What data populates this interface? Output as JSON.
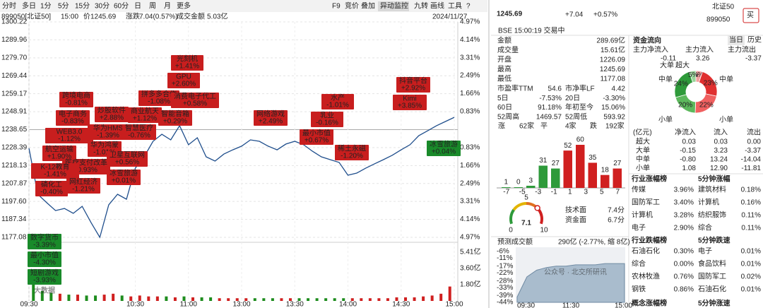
{
  "toolbar": {
    "periods": [
      "分时",
      "多日",
      "1分",
      "5分",
      "15分",
      "30分",
      "60分",
      "日",
      "周",
      "月",
      "更多"
    ],
    "tools": [
      "F9",
      "竞价",
      "叠加",
      "异动监控",
      "九转",
      "画线",
      "工具",
      "?"
    ]
  },
  "info": {
    "code": "899050[北证50]",
    "time": "15:00",
    "price_label": "价",
    "price": "1245.69",
    "change_label": "涨跌",
    "change": "7.04(0.57%)",
    "amount_label": "成交金额",
    "amount": "5.03亿",
    "date": "2024/11/27"
  },
  "chart_data": {
    "type": "line",
    "color": "#1f4e8c",
    "grid": true,
    "values": [
      1228.0,
      1201.7,
      1196.9,
      1192.4,
      1193.6,
      1190.8,
      1194.8,
      1185.6,
      1177.08,
      1195.7,
      1201.7,
      1198.9,
      1216.6,
      1223.1,
      1232.0,
      1236.0,
      1232.8,
      1240.9,
      1230.0,
      1234.0,
      1223.1,
      1220.7,
      1224.7,
      1227.1,
      1229.2,
      1232.8,
      1232.0,
      1229.2,
      1227.1,
      1230.4,
      1232.0,
      1230.0,
      1226.3,
      1223.1,
      1221.5,
      1219.9,
      1212.6,
      1213.8,
      1216.6,
      1219.1,
      1221.5,
      1224.0,
      1227.1,
      1230.0,
      1235.2,
      1238.0,
      1240.9,
      1243.3,
      1245.69
    ],
    "ylim": [
      1177.08,
      1300.22
    ],
    "yticks": [
      1300.22,
      1289.96,
      {
        "value": 1279.7,
        "label": "1279.70"
      },
      1269.44,
      1259.17,
      1248.91,
      1238.65,
      1228.39,
      1218.13,
      1207.87,
      {
        "value": 1197.6,
        "label": "1197.60"
      },
      1187.34,
      1177.08
    ],
    "y2lim": [
      -4.97,
      4.97
    ],
    "y2ticks": [
      {
        "value": 4.97,
        "label": "4.97%"
      },
      {
        "value": 4.14,
        "label": "4.14%"
      },
      {
        "value": 3.31,
        "label": "3.31%"
      },
      {
        "value": 2.49,
        "label": "2.49%"
      },
      {
        "value": 1.66,
        "label": "1.66%"
      },
      {
        "value": 0.83,
        "label": "0.83%"
      },
      {
        "value": -0.83,
        "label": "0.83%"
      },
      {
        "value": -1.66,
        "label": "1.66%"
      },
      {
        "value": -2.49,
        "label": "2.49%"
      },
      {
        "value": -3.31,
        "label": "3.31%"
      },
      {
        "value": -4.14,
        "label": "4.14%"
      },
      {
        "value": -4.97,
        "label": "4.97%"
      }
    ],
    "xticks": [
      "09:30",
      "10:30",
      "11:00",
      "13:00",
      "13:30",
      "14:00",
      "14:30",
      "15:00"
    ],
    "volume": {
      "values": [
        2.6,
        1.1,
        0.9,
        0.8,
        0.7,
        0.7,
        0.6,
        0.6,
        0.7,
        0.8,
        0.6,
        0.5,
        0.6,
        0.5,
        0.5,
        0.5,
        0.4,
        0.5,
        0.4,
        0.4,
        0.4,
        0.3,
        0.3,
        0.3,
        0.3,
        0.3,
        0.3,
        0.3,
        0.3,
        0.3,
        0.3,
        0.3,
        0.3,
        0.3,
        0.3,
        0.3,
        0.3,
        0.3,
        0.3,
        0.3,
        0.3,
        0.4,
        0.4,
        0.4,
        0.5,
        0.6,
        0.8,
        1.6
      ],
      "ylim": [
        0,
        5.41
      ],
      "yticks": [
        {
          "value": 5.41,
          "label": "5.41亿"
        },
        {
          "value": 3.6,
          "label": "3.60亿"
        },
        {
          "value": 1.8,
          "label": "1.80亿"
        }
      ]
    }
  },
  "annotations": [
    {
      "name": "光刻机",
      "change": "+1.41%",
      "tone": "up"
    },
    {
      "name": "GPU",
      "change": "+2.60%",
      "tone": "up"
    },
    {
      "name": "拼多多合作",
      "change": "-1.08%",
      "tone": "up"
    },
    {
      "name": "消费电子代工",
      "change": "+0.58%",
      "tone": "up"
    },
    {
      "name": "跨境电商",
      "change": "-0.81%",
      "tone": "up"
    },
    {
      "name": "电子商务",
      "change": "-0.83%",
      "tone": "up"
    },
    {
      "name": "炒股软件",
      "change": "+2.88%",
      "tone": "up"
    },
    {
      "name": "商业航天",
      "change": "+1.12%",
      "tone": "up"
    },
    {
      "name": "智能音箱",
      "change": "+0.29%",
      "tone": "up"
    },
    {
      "name": "华为HMS",
      "change": "-1.39%",
      "tone": "up"
    },
    {
      "name": "智慧医疗",
      "change": "-0.76%",
      "tone": "up"
    },
    {
      "name": "WEB3.0",
      "change": "-1.12%",
      "tone": "up"
    },
    {
      "name": "航空运输",
      "change": "+1.90%",
      "tone": "up"
    },
    {
      "name": "华为鸿蒙",
      "change": "-1.01%",
      "tone": "up"
    },
    {
      "name": "卫星互联网",
      "change": "+0.56%",
      "tone": "up"
    },
    {
      "name": "医疗支付改革",
      "change": "-0.93%",
      "tone": "up"
    },
    {
      "name": "K-12教育",
      "change": "-1.41%",
      "tone": "up"
    },
    {
      "name": "冰雪旅游",
      "change": "+0.01%",
      "tone": "up"
    },
    {
      "name": "网红经济",
      "change": "-1.21%",
      "tone": "up"
    },
    {
      "name": "磷化工",
      "change": "-0.40%",
      "tone": "up"
    },
    {
      "name": "网络游戏",
      "change": "+2.49%",
      "tone": "up"
    },
    {
      "name": "水产",
      "change": "-1.01%",
      "tone": "up"
    },
    {
      "name": "乳业",
      "change": "-0.16%",
      "tone": "up"
    },
    {
      "name": "最小市值",
      "change": "+0.67%",
      "tone": "up"
    },
    {
      "name": "稀土永磁",
      "change": "-1.20%",
      "tone": "up"
    },
    {
      "name": "抖音平台",
      "change": "+2.92%",
      "tone": "up"
    },
    {
      "name": "Kimi",
      "change": "+3.85%",
      "tone": "up"
    },
    {
      "name": "冰雪旅游",
      "change": "+0.04%",
      "tone": "down"
    },
    {
      "name": "数字货币",
      "change": "-3.39%",
      "tone": "down"
    },
    {
      "name": "最小市值",
      "change": "-4.30%",
      "tone": "down"
    },
    {
      "name": "短剧游戏",
      "change": "-3.93%",
      "tone": "down"
    }
  ],
  "quote": {
    "price": "1245.69",
    "change": "+7.04",
    "pct": "+0.57%",
    "name": "北证50",
    "code": "899050",
    "status": "BSE 15:00:19 交易中",
    "buy": "买"
  },
  "stats": {
    "rows": [
      [
        "金额",
        "289.69亿"
      ],
      [
        "成交量",
        "15.61亿"
      ],
      [
        "开盘",
        "1226.09"
      ],
      [
        "最高",
        "1245.69"
      ],
      [
        "最低",
        "1177.08"
      ]
    ],
    "pairs": [
      [
        "市盈率TTM",
        "54.6",
        "市净率LF",
        "4.42"
      ],
      [
        "5日",
        "-7.53%",
        "20日",
        "-3.30%"
      ],
      [
        "60日",
        "91.18%",
        "年初至今",
        "15.06%"
      ],
      [
        "52周高",
        "1469.57",
        "52周低",
        "593.92"
      ]
    ],
    "breadth": [
      "涨",
      "62家",
      "平",
      "4家",
      "跌",
      "192家"
    ]
  },
  "fund_flow": {
    "title": "资金流向",
    "tabs": [
      "当日",
      "历史"
    ],
    "summary_labels": [
      "主力净流入",
      "主力流入",
      "主力流出"
    ],
    "summary_values": [
      "-0.11",
      "3.26",
      "-3.37"
    ],
    "donut": {
      "values": [
        5,
        23,
        22,
        20,
        24,
        5
      ],
      "value_labels": [
        "5%",
        "23%",
        "22%",
        "20%",
        "24%",
        "5%"
      ],
      "colors": [
        "#f3a0a0",
        "#e03030",
        "#f06060",
        "#5cb85c",
        "#2e9a3a",
        "#9ad49a"
      ]
    },
    "donut_labels": [
      "大单",
      "超大",
      "中单",
      "中单",
      "小单",
      "小单"
    ],
    "table": {
      "header": [
        "(亿元)",
        "净流入",
        "流入",
        "流出"
      ],
      "rows": [
        [
          "超大",
          "0.03",
          "0.03",
          "0.00"
        ],
        [
          "大单",
          "-0.15",
          "3.23",
          "-3.37"
        ],
        [
          "中单",
          "-0.80",
          "13.24",
          "-14.04"
        ],
        [
          "小单",
          "1.08",
          "12.90",
          "-11.81"
        ]
      ]
    }
  },
  "distribution": {
    "type": "bar",
    "values": [
      1,
      0,
      3,
      31,
      27,
      52,
      60,
      35,
      18,
      27
    ],
    "colors": [
      "#2e9a3a",
      "#2e9a3a",
      "#2e9a3a",
      "#2e9a3a",
      "#2e9a3a",
      "#d02020",
      "#d02020",
      "#d02020",
      "#d02020",
      "#d02020"
    ],
    "x_labels": [
      "-7",
      "-5",
      "-3",
      "-1",
      "1",
      "3",
      "5",
      "7"
    ],
    "ylim": [
      0,
      60
    ]
  },
  "score": {
    "value": 7.1,
    "scale": [
      0,
      5,
      10
    ],
    "items": [
      [
        "技术面",
        "7.4分"
      ],
      [
        "资金面",
        "6.7分"
      ]
    ]
  },
  "forecast": {
    "label": "预测成交额",
    "value": "290亿 (-2.77%, 缩 8亿)",
    "values": [
      -40,
      -25,
      -20,
      -18,
      -17,
      -17,
      -16,
      -16,
      -16,
      -15,
      -15,
      -15
    ],
    "ylim": [
      -44,
      -6
    ],
    "yticks": [
      {
        "value": -6,
        "label": "-6%"
      },
      {
        "value": -11,
        "label": "-11%"
      },
      {
        "value": -17,
        "label": "-17%"
      },
      {
        "value": -22,
        "label": "-22%"
      },
      {
        "value": -28,
        "label": "-28%"
      },
      {
        "value": -33,
        "label": "-33%"
      },
      {
        "value": -39,
        "label": "-39%"
      },
      {
        "value": -44,
        "label": "-44%"
      }
    ],
    "xticks": [
      "09:30",
      "11:30",
      "15:00"
    ]
  },
  "rankings": [
    {
      "title": "行业涨幅榜",
      "title2": "5分钟涨幅",
      "rows": [
        [
          "传媒",
          "3.96%",
          "建筑材料",
          "0.18%"
        ],
        [
          "国防军工",
          "3.40%",
          "计算机",
          "0.16%"
        ],
        [
          "计算机",
          "3.28%",
          "纺织服饰",
          "0.11%"
        ],
        [
          "电子",
          "2.90%",
          "综合",
          "0.11%"
        ]
      ]
    },
    {
      "title": "行业跌幅榜",
      "title2": "5分钟跌速",
      "rows": [
        [
          "石油石化",
          "0.30%",
          "电子",
          "0.01%"
        ],
        [
          "综合",
          "0.00%",
          "食品饮料",
          "0.01%"
        ],
        [
          "农林牧渔",
          "0.76%",
          "国防军工",
          "0.02%"
        ],
        [
          "钢铁",
          "0.86%",
          "石油石化",
          "0.01%"
        ]
      ]
    },
    {
      "title": "概念涨幅榜",
      "title2": "5分钟涨速",
      "rows": []
    }
  ],
  "watermark": [
    "公众号 · 北交所研讯",
    "大数据"
  ]
}
